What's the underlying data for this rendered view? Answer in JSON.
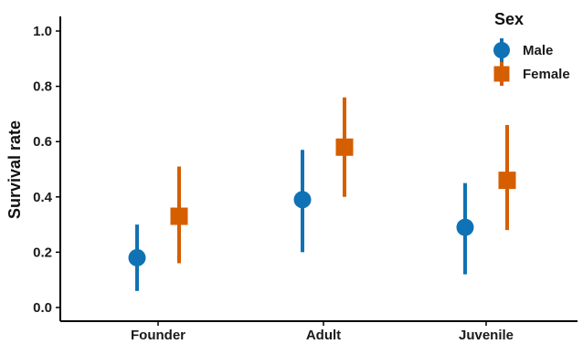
{
  "chart_data": {
    "type": "scatter",
    "categories": [
      "Founder",
      "Adult",
      "Juvenile"
    ],
    "ylabel": "Survival rate",
    "xlabel": "",
    "ylim": [
      0,
      1.05
    ],
    "yticks": [
      "0.0",
      "0.2",
      "0.4",
      "0.6",
      "0.8",
      "1.0"
    ],
    "legend": {
      "title": "Sex",
      "position": "top-right"
    },
    "series": [
      {
        "name": "Male",
        "color": "#0f72b4",
        "marker": "circle",
        "values": [
          0.18,
          0.39,
          0.29
        ],
        "lower": [
          0.06,
          0.2,
          0.12
        ],
        "upper": [
          0.3,
          0.57,
          0.45
        ]
      },
      {
        "name": "Female",
        "color": "#d55e00",
        "marker": "square",
        "values": [
          0.33,
          0.58,
          0.46
        ],
        "lower": [
          0.16,
          0.4,
          0.28
        ],
        "upper": [
          0.51,
          0.76,
          0.66
        ]
      }
    ]
  }
}
